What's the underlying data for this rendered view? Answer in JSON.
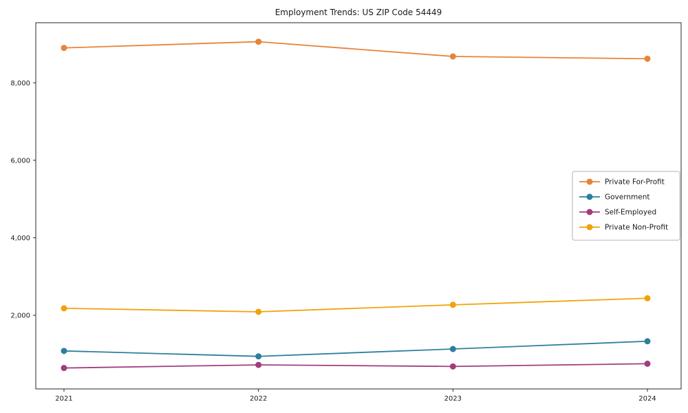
{
  "chart_data": {
    "type": "line",
    "title": "Employment Trends: US ZIP Code 54449",
    "xlabel": "",
    "ylabel": "",
    "x": [
      "2021",
      "2022",
      "2023",
      "2024"
    ],
    "series": [
      {
        "name": "Private For-Profit",
        "color": "#e8833a",
        "values": [
          8900,
          9060,
          8680,
          8620
        ]
      },
      {
        "name": "Government",
        "color": "#2e7f9e",
        "values": [
          1080,
          940,
          1130,
          1330
        ]
      },
      {
        "name": "Self-Employed",
        "color": "#a13d7d",
        "values": [
          640,
          720,
          680,
          750
        ]
      },
      {
        "name": "Private Non-Profit",
        "color": "#f0a30a",
        "values": [
          2180,
          2090,
          2270,
          2440
        ]
      }
    ],
    "ylim": [
      100,
      9550
    ],
    "yticks": [
      2000,
      4000,
      6000,
      8000
    ],
    "ytick_labels": [
      "2,000",
      "4,000",
      "6,000",
      "8,000"
    ],
    "grid": false,
    "legend_position": "center right",
    "axis_color": "#262626",
    "marker": "circle",
    "marker_radius": 4.5,
    "line_width": 1.8
  }
}
